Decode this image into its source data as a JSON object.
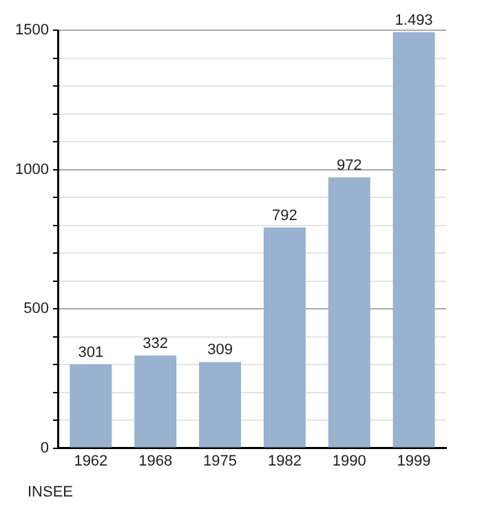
{
  "chart_data": {
    "type": "bar",
    "categories": [
      "1962",
      "1968",
      "1975",
      "1982",
      "1990",
      "1999"
    ],
    "values": [
      301,
      332,
      309,
      792,
      972,
      1493
    ],
    "value_labels": [
      "301",
      "332",
      "309",
      "792",
      "972",
      "1.493"
    ],
    "color": "#98b2cf",
    "ylim": [
      0,
      1500
    ],
    "yticks": [
      0,
      {
        "value": 100,
        "label": null
      },
      {
        "value": 200,
        "label": null
      },
      {
        "value": 300,
        "label": null
      },
      {
        "value": 400,
        "label": null
      },
      500,
      {
        "value": 600,
        "label": null
      },
      {
        "value": 700,
        "label": null
      },
      {
        "value": 800,
        "label": null
      },
      {
        "value": 900,
        "label": null
      },
      1000,
      {
        "value": 1100,
        "label": null
      },
      {
        "value": 1200,
        "label": null
      },
      {
        "value": 1300,
        "label": null
      },
      {
        "value": 1400,
        "label": null
      },
      1500
    ],
    "grid": "y",
    "legend": false,
    "annotations": [
      "INSEE"
    ]
  }
}
